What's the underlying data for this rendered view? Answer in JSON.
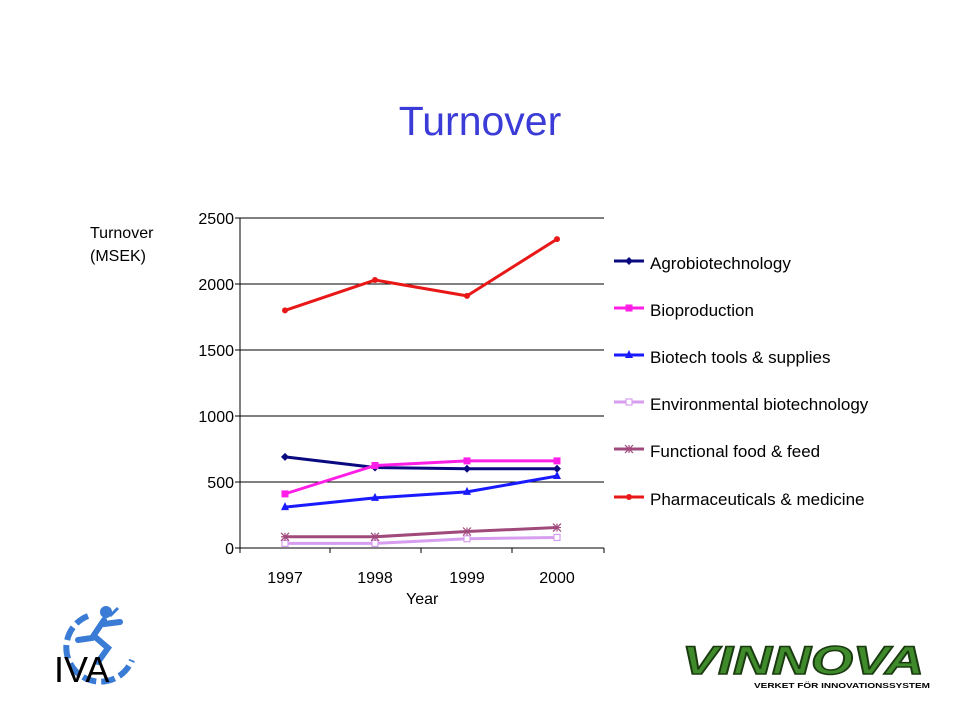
{
  "slide": {
    "title": "Turnover"
  },
  "chart_data": {
    "type": "line",
    "title": "",
    "ylabel_line1": "Turnover",
    "ylabel_line2": "(MSEK)",
    "xlabel": "Year",
    "x": [
      "1997",
      "1998",
      "1999",
      "2000"
    ],
    "ylim": [
      0,
      2500
    ],
    "yticks": [
      0,
      500,
      1000,
      1500,
      2000,
      2500
    ],
    "grid": "horizontal",
    "legend_position": "right",
    "series": [
      {
        "name": "Agrobiotechnology",
        "values": [
          690,
          610,
          600,
          600
        ],
        "color": "#0a0a80",
        "marker": "diamond"
      },
      {
        "name": "Bioproduction",
        "values": [
          410,
          625,
          660,
          660
        ],
        "color": "#ff1ee6",
        "marker": "square"
      },
      {
        "name": "Biotech tools & supplies",
        "values": [
          310,
          380,
          425,
          545
        ],
        "color": "#1a1aff",
        "marker": "triangle"
      },
      {
        "name": "Environmental biotechnology",
        "values": [
          35,
          35,
          70,
          80
        ],
        "color": "#d79ef0",
        "marker": "open-square"
      },
      {
        "name": "Functional food & feed",
        "values": [
          85,
          85,
          125,
          155
        ],
        "color": "#a04a7c",
        "marker": "asterisk"
      },
      {
        "name": "Pharmaceuticals & medicine",
        "values": [
          1800,
          2030,
          1910,
          2340
        ],
        "color": "#e81818",
        "marker": "circle"
      }
    ]
  },
  "logos": {
    "iva": {
      "text": "IVA",
      "icon": "iva-runner-logo"
    },
    "vinnova": {
      "text": "VINNOVA",
      "subtitle": "VERKET FÖR INNOVATIONSSYSTEM",
      "icon": "vinnova-logo"
    }
  }
}
